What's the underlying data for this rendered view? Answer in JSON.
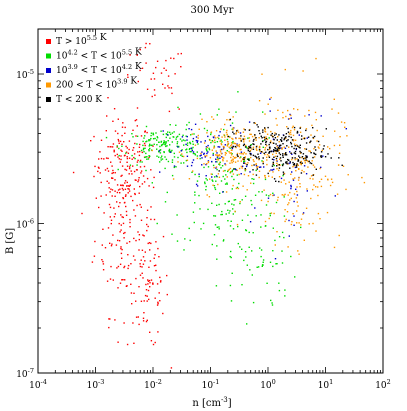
{
  "chart_data": {
    "type": "scatter",
    "title": "300 Myr",
    "xlabel": "n [cm",
    "xlabel_exp": "-3",
    "xlabel_end": "]",
    "ylabel": "B [G]",
    "xscale": "log",
    "yscale": "log",
    "xlim": [
      0.0001,
      100
    ],
    "ylim": [
      1e-07,
      2e-05
    ],
    "grid": false,
    "legend_position": "top-left",
    "x_ticks": [
      {
        "value": 0.0001,
        "base": "10",
        "exp": "-4"
      },
      {
        "value": 0.001,
        "base": "10",
        "exp": "-3"
      },
      {
        "value": 0.01,
        "base": "10",
        "exp": "-2"
      },
      {
        "value": 0.1,
        "base": "10",
        "exp": "-1"
      },
      {
        "value": 1,
        "base": "10",
        "exp": "0"
      },
      {
        "value": 10,
        "base": "10",
        "exp": "1"
      },
      {
        "value": 100,
        "base": "10",
        "exp": "2"
      }
    ],
    "y_ticks": [
      {
        "value": 1e-07,
        "base": "10",
        "exp": "-7"
      },
      {
        "value": 1e-06,
        "base": "10",
        "exp": "-6"
      },
      {
        "value": 1e-05,
        "base": "10",
        "exp": "-5"
      }
    ],
    "series": [
      {
        "name": "T > 10^5.5 K",
        "color": "#ff0000",
        "legend": {
          "pre": "T > 10",
          "exp": "5.5",
          "post": " K"
        },
        "count": 420,
        "clusters": [
          {
            "x": 0.003,
            "y": 2.5e-06,
            "sx": 0.25,
            "sy": 0.15,
            "w": 0.35
          },
          {
            "x": 0.003,
            "y": 1e-06,
            "sx": 0.25,
            "sy": 0.3,
            "w": 0.35
          },
          {
            "x": 0.008,
            "y": 4e-07,
            "sx": 0.18,
            "sy": 0.22,
            "w": 0.2
          },
          {
            "x": 0.01,
            "y": 9e-06,
            "sx": 0.3,
            "sy": 0.12,
            "w": 0.1
          }
        ]
      },
      {
        "name": "10^4.2 < T < 10^5.5 K",
        "color": "#00dd00",
        "legend": {
          "pre": "10",
          "exp": "4.2",
          "mid": " < T < 10",
          "exp2": "5.5",
          "post": " K"
        },
        "count": 440,
        "clusters": [
          {
            "x": 0.015,
            "y": 3.3e-06,
            "sx": 0.35,
            "sy": 0.06,
            "w": 0.4
          },
          {
            "x": 0.15,
            "y": 2e-06,
            "sx": 0.45,
            "sy": 0.25,
            "w": 0.45
          },
          {
            "x": 0.6,
            "y": 6e-07,
            "sx": 0.35,
            "sy": 0.2,
            "w": 0.15
          }
        ]
      },
      {
        "name": "10^3.9 < T < 10^4.2 K",
        "color": "#0000cc",
        "legend": {
          "pre": "10",
          "exp": "3.9",
          "mid": " < T < 10",
          "exp2": "4.2",
          "post": " K"
        },
        "count": 150,
        "clusters": [
          {
            "x": 0.1,
            "y": 3e-06,
            "sx": 0.4,
            "sy": 0.1,
            "w": 0.6
          },
          {
            "x": 2.0,
            "y": 2.5e-06,
            "sx": 0.4,
            "sy": 0.2,
            "w": 0.4
          }
        ]
      },
      {
        "name": "200 < T < 10^3.9 K",
        "color": "#ff9900",
        "legend": {
          "pre": "200 < T < 10",
          "exp": "3.9",
          "post": " K"
        },
        "count": 500,
        "clusters": [
          {
            "x": 0.3,
            "y": 3e-06,
            "sx": 0.4,
            "sy": 0.1,
            "w": 0.55
          },
          {
            "x": 3.0,
            "y": 2.4e-06,
            "sx": 0.4,
            "sy": 0.25,
            "w": 0.45
          }
        ]
      },
      {
        "name": "T < 200 K",
        "color": "#000000",
        "legend": {
          "pre": "T < 200 K"
        },
        "count": 260,
        "clusters": [
          {
            "x": 2.0,
            "y": 3e-06,
            "sx": 0.35,
            "sy": 0.08,
            "w": 0.7
          },
          {
            "x": 0.8,
            "y": 3.5e-06,
            "sx": 0.3,
            "sy": 0.08,
            "w": 0.3
          }
        ]
      }
    ]
  }
}
